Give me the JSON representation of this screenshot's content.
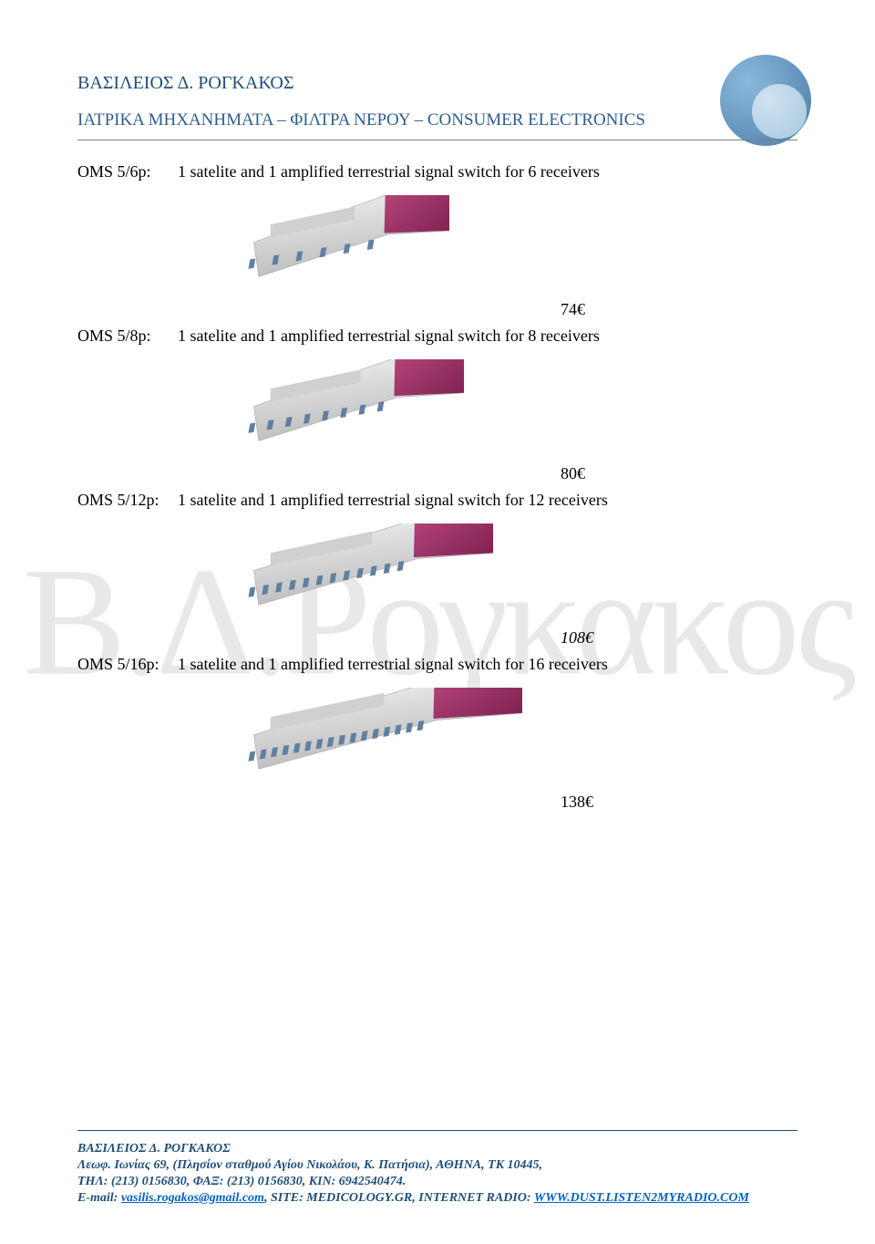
{
  "header": {
    "title": "ΒΑΣΙΛΕΙΟΣ Δ. ΡΟΓΚΑΚΟΣ",
    "subtitle": "ΙΑΤΡΙΚΑ ΜΗΧΑΝΗΜΑΤΑ – ΦΙΛΤΡΑ ΝΕΡΟΥ – CONSUMER ELECTRONICS"
  },
  "watermark": "Β.Δ.Ρογκακος",
  "products": [
    {
      "code": "OMS 5/6p:",
      "description": "1 satelite and 1 amplified terrestrial signal switch for 6 receivers",
      "price": "74€",
      "ports": 6
    },
    {
      "code": "OMS 5/8p:",
      "description": "1 satelite and 1 amplified terrestrial signal switch for 8 receivers",
      "price": "80€",
      "ports": 8
    },
    {
      "code": "OMS 5/12p:",
      "description": "1 satelite and 1 amplified terrestrial signal switch for 12 receivers",
      "price": "108€",
      "price_italic": true,
      "ports": 12
    },
    {
      "code": "OMS 5/16p:",
      "description": "1 satelite and 1 amplified terrestrial signal switch for 16 receivers",
      "price": "138€",
      "ports": 16
    }
  ],
  "switch_colors": {
    "body_top": "#e8e8e8",
    "body_bottom": "#c0c0c0",
    "cap_light": "#b8457a",
    "cap_dark": "#7a2050",
    "port": "#6080a0",
    "label": "#d0d0d0"
  },
  "footer": {
    "name": "ΒΑΣΙΛΕΙΟΣ Δ. ΡΟΓΚΑΚΟΣ",
    "address": "Λεωφ. Ιωνίας 69, (Πλησίον σταθμού Αγίου Νικολάου, Κ. Πατήσια), ΑΘΗΝΑ, ΤΚ 10445,",
    "phones": "ΤΗΛ: (213) 0156830, ΦΑΞ: (213) 0156830, ΚΙΝ: 6942540474.",
    "email_label": "E-mail: ",
    "email": "vasilis.rogakos@gmail.com",
    "site_label": ", SITE: MEDICOLOGY.GR, INTERNET RADIO: ",
    "radio": "WWW.DUST.LISTEN2MYRADIO.COM"
  }
}
